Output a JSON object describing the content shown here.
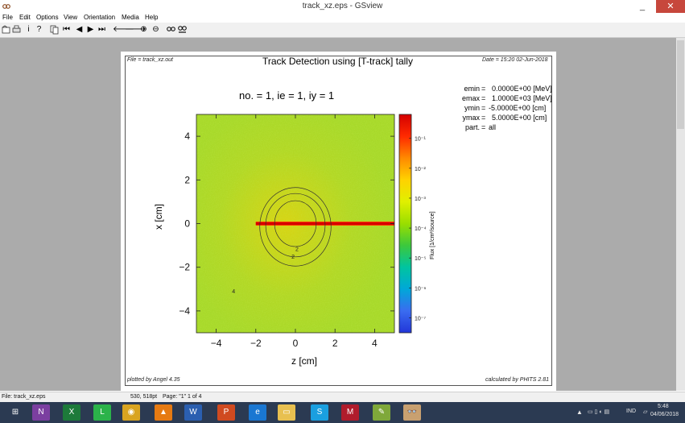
{
  "window": {
    "title": "track_xz.eps - GSview",
    "minimize": "_",
    "maximize": "□",
    "close": "✕"
  },
  "menu": [
    "File",
    "Edit",
    "Options",
    "View",
    "Orientation",
    "Media",
    "Help"
  ],
  "toolbar_icons": [
    "open-icon",
    "print-icon",
    "info-icon",
    "help-icon",
    "copy-icon",
    "first-page-icon",
    "prev-page-icon",
    "next-page-icon",
    "last-page-icon",
    "back-icon",
    "forward-icon",
    "zoom-in-icon",
    "zoom-out-icon",
    "magnify-icon",
    "magnify-all-icon"
  ],
  "plot": {
    "file": "File = track_xz.out",
    "title": "Track Detection using [T-track] tally",
    "date": "Date = 15:20 02-Jun-2018",
    "subtitle": "no. =  1,  ie =  1,  iy =  1",
    "params": [
      {
        "name": "emin",
        "value": "0.0000E+00 [MeV]"
      },
      {
        "name": "emax",
        "value": "1.0000E+03 [MeV]"
      },
      {
        "name": "ymin",
        "value": "-5.0000E+00 [cm]"
      },
      {
        "name": "ymax",
        "value": "5.0000E+00 [cm]"
      },
      {
        "name": "part.",
        "value": "all"
      }
    ],
    "footer_left": "plotted by Angel 4.35",
    "footer_right": "calculated by PHITS 2.81"
  },
  "chart_data": {
    "type": "heatmap",
    "title": "no. = 1, ie = 1, iy = 1",
    "xlabel": "z [cm]",
    "ylabel": "x [cm]",
    "xlim": [
      -5,
      5
    ],
    "ylim": [
      -5,
      5
    ],
    "xticks": [
      "−4",
      "−2",
      "0",
      "2",
      "4"
    ],
    "yticks": [
      "4",
      "2",
      "0",
      "−2",
      "−4"
    ],
    "colorbar": {
      "label": "Flux [1/cm²/source]",
      "ticks": [
        "10⁻¹",
        "10⁻²",
        "10⁻³",
        "10⁻⁴",
        "10⁻⁵",
        "10⁻⁶",
        "10⁻⁷"
      ],
      "colors": [
        "#d40000",
        "#ff2a00",
        "#ff8a00",
        "#ffd200",
        "#e0f000",
        "#9ade00",
        "#3cc83c",
        "#00c4a0",
        "#00a8d8",
        "#3a6cf0",
        "#2236d8"
      ]
    },
    "contour_labels": [
      "2",
      "2",
      "4"
    ],
    "track": {
      "z_start": -2,
      "z_end": 5,
      "x": 0
    }
  },
  "status": {
    "file": "File: track_xz.eps",
    "coords": "530, 518pt",
    "page": "Page: \"1\"  1 of 4"
  },
  "tray": {
    "lang": "IND",
    "time": "5:48",
    "date": "04/06/2018"
  },
  "taskbar_apps": [
    {
      "name": "start",
      "glyph": "⊞",
      "color": "#2b3a52"
    },
    {
      "name": "onenote",
      "glyph": "N",
      "color": "#7b3fa0"
    },
    {
      "name": "excel",
      "glyph": "X",
      "color": "#1d7a3a"
    },
    {
      "name": "line",
      "glyph": "L",
      "color": "#2bb34a"
    },
    {
      "name": "chrome",
      "glyph": "◉",
      "color": "#d9a420"
    },
    {
      "name": "vlc",
      "glyph": "▲",
      "color": "#e67a12"
    },
    {
      "name": "word",
      "glyph": "W",
      "color": "#2b5fb0"
    },
    {
      "name": "powerpoint",
      "glyph": "P",
      "color": "#d04a20"
    },
    {
      "name": "ie",
      "glyph": "e",
      "color": "#1a77d2"
    },
    {
      "name": "explorer",
      "glyph": "▭",
      "color": "#e8c050"
    },
    {
      "name": "skype",
      "glyph": "S",
      "color": "#1a9fe0"
    },
    {
      "name": "mendeley",
      "glyph": "M",
      "color": "#b01c2c"
    },
    {
      "name": "notepad",
      "glyph": "✎",
      "color": "#7fa83a"
    },
    {
      "name": "gsview",
      "glyph": "👓",
      "color": "#c8a070"
    }
  ]
}
